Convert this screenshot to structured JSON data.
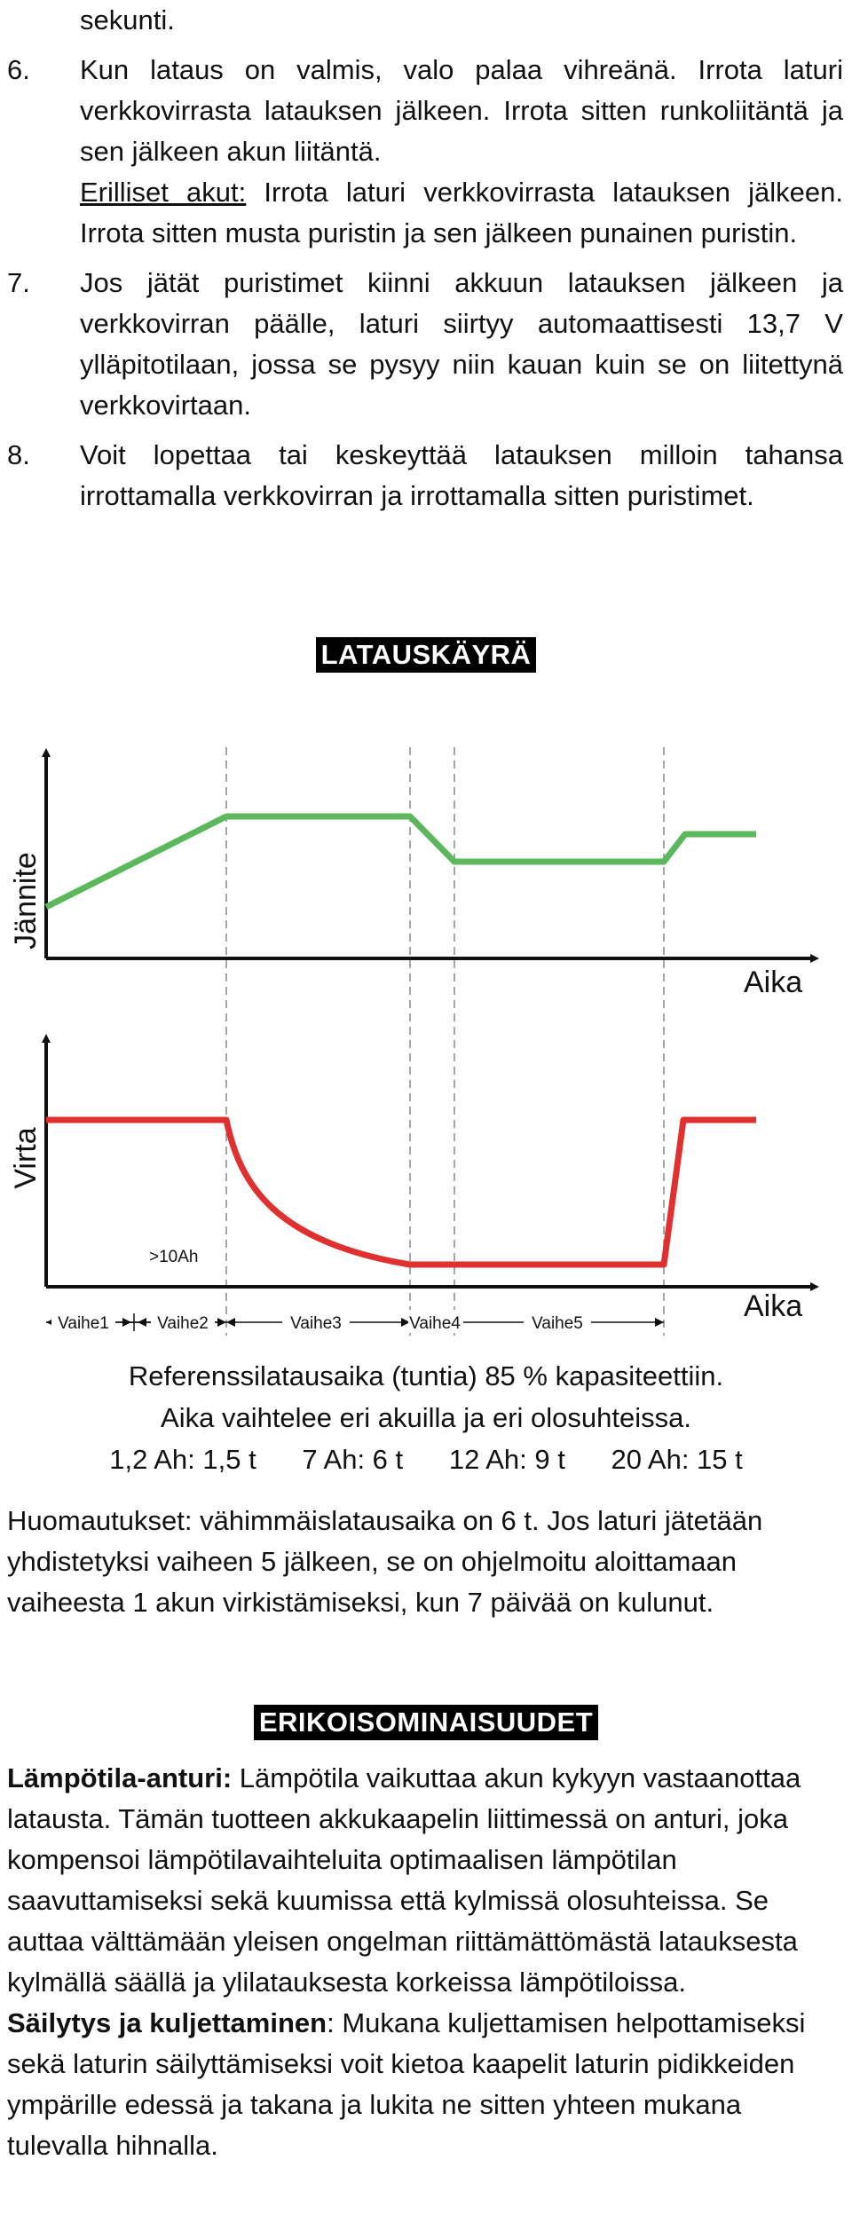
{
  "instructions": {
    "fragment": "sekunti.",
    "items": [
      {
        "number": "6.",
        "text": "Kun lataus on valmis, valo palaa vihreänä. Irrota laturi verkkovirrasta latauksen jälkeen. Irrota sitten runkoliitäntä ja sen jälkeen akun liitäntä.",
        "extra_label": "Erilliset akut:",
        "extra_text": " Irrota laturi verkkovirrasta latauksen jälkeen. Irrota sitten musta puristin ja sen jälkeen punainen puristin."
      },
      {
        "number": "7.",
        "text": "Jos jätät puristimet kiinni akkuun latauksen jälkeen ja verkkovirran päälle, laturi siirtyy automaattisesti 13,7 V ylläpitotilaan, jossa se pysyy niin kauan kuin se on liitettynä verkkovirtaan."
      },
      {
        "number": "8.",
        "text": "Voit lopettaa tai keskeyttää latauksen milloin tahansa irrottamalla verkkovirran ja irrottamalla sitten puristimet."
      }
    ]
  },
  "charging_curve": {
    "heading": "LATAUSKÄYRÄ",
    "voltage_axis_label": "Jännite",
    "current_axis_label": "Virta",
    "time_axis_label_top": "Aika",
    "time_axis_label_bottom": "Aika",
    "capacity_note": ">10Ah",
    "stages": [
      "Vaihe1",
      "Vaihe2",
      "Vaihe3",
      "Vaihe4",
      "Vaihe5"
    ],
    "colors": {
      "voltage": "#5cb85c",
      "current": "#e03030",
      "axis": "#111111",
      "divider": "#888888"
    }
  },
  "reference": {
    "line1": "Referenssilatausaika (tuntia) 85 % kapasiteettiin.",
    "line2": "Aika vaihtelee eri akuilla ja eri olosuhteissa.",
    "times": [
      "1,2 Ah: 1,5 t",
      "7 Ah: 6 t",
      "12 Ah: 9 t",
      "20 Ah: 15 t"
    ]
  },
  "notes": "Huomautukset: vähimmäislatausaika on 6 t. Jos laturi jätetään yhdistetyksi vaiheen 5 jälkeen, se on ohjelmoitu aloittamaan vaiheesta 1 akun virkistämiseksi, kun 7 päivää on kulunut.",
  "features": {
    "heading": "ERIKOISOMINAISUUDET",
    "temperature": {
      "label": "Lämpötila-anturi:",
      "text": " Lämpötila vaikuttaa akun kykyyn vastaanottaa latausta. Tämän tuotteen akkukaapelin liittimessä on anturi, joka kompensoi lämpötilavaihteluita optimaalisen lämpötilan saavuttamiseksi sekä kuumissa että kylmissä olosuhteissa. Se auttaa välttämään yleisen ongelman riittämättömästä latauksesta kylmällä säällä ja ylilatauksesta korkeissa lämpötiloissa."
    },
    "storage": {
      "label": "Säilytys ja kuljettaminen",
      "text": ": Mukana kuljettamisen helpottamiseksi sekä laturin säilyttämiseksi voit kietoa kaapelit laturin pidikkeiden ympärille edessä ja takana ja lukita ne sitten yhteen mukana tulevalla hihnalla."
    }
  }
}
